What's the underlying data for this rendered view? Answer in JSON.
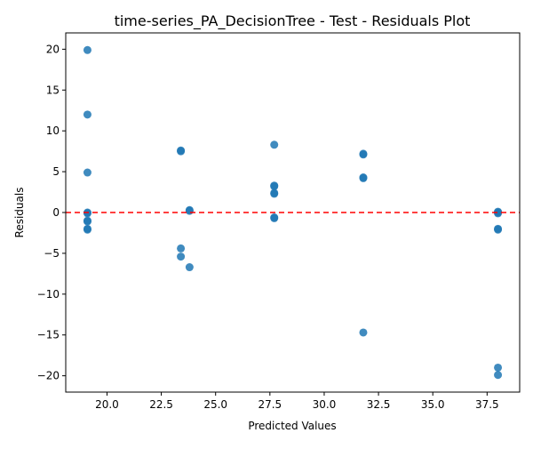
{
  "chart_data": {
    "type": "scatter",
    "title": "time-series_PA_DecisionTree - Test - Residuals Plot",
    "xlabel": "Predicted Values",
    "ylabel": "Residuals",
    "xlim": [
      18.1,
      39.0
    ],
    "ylim": [
      -22.0,
      22.0
    ],
    "xticks": [
      20.0,
      22.5,
      25.0,
      27.5,
      30.0,
      32.5,
      35.0,
      37.5
    ],
    "xtick_labels": [
      "20.0",
      "22.5",
      "25.0",
      "27.5",
      "30.0",
      "32.5",
      "35.0",
      "37.5"
    ],
    "yticks": [
      -20,
      -15,
      -10,
      -5,
      0,
      5,
      10,
      15,
      20
    ],
    "ytick_labels": [
      "−20",
      "−15",
      "−10",
      "−5",
      "0",
      "5",
      "10",
      "15",
      "20"
    ],
    "grid": false,
    "reference_line": {
      "y": 0,
      "color": "#ff0000",
      "style": "dashed"
    },
    "marker_color": "#1f77b4",
    "points": [
      {
        "x": 19.1,
        "y": 19.9
      },
      {
        "x": 19.1,
        "y": 12.0
      },
      {
        "x": 19.1,
        "y": 4.9
      },
      {
        "x": 19.1,
        "y": 0.0
      },
      {
        "x": 19.1,
        "y": -0.1
      },
      {
        "x": 19.1,
        "y": -1.0
      },
      {
        "x": 19.1,
        "y": -1.1
      },
      {
        "x": 19.1,
        "y": -2.0
      },
      {
        "x": 19.1,
        "y": -2.1
      },
      {
        "x": 23.4,
        "y": 7.6
      },
      {
        "x": 23.4,
        "y": 7.5
      },
      {
        "x": 23.4,
        "y": -4.4
      },
      {
        "x": 23.4,
        "y": -5.4
      },
      {
        "x": 23.8,
        "y": 0.3
      },
      {
        "x": 23.8,
        "y": 0.2
      },
      {
        "x": 23.8,
        "y": -6.7
      },
      {
        "x": 27.7,
        "y": 8.3
      },
      {
        "x": 27.7,
        "y": 3.3
      },
      {
        "x": 27.7,
        "y": 3.2
      },
      {
        "x": 27.7,
        "y": 2.4
      },
      {
        "x": 27.7,
        "y": 2.3
      },
      {
        "x": 27.7,
        "y": -0.6
      },
      {
        "x": 27.7,
        "y": -0.7
      },
      {
        "x": 31.8,
        "y": 7.2
      },
      {
        "x": 31.8,
        "y": 7.1
      },
      {
        "x": 31.8,
        "y": 4.3
      },
      {
        "x": 31.8,
        "y": 4.2
      },
      {
        "x": 31.8,
        "y": -14.7
      },
      {
        "x": 38.0,
        "y": 0.1
      },
      {
        "x": 38.0,
        "y": 0.0
      },
      {
        "x": 38.0,
        "y": -0.1
      },
      {
        "x": 38.0,
        "y": -2.0
      },
      {
        "x": 38.0,
        "y": -2.1
      },
      {
        "x": 38.0,
        "y": -19.0
      },
      {
        "x": 38.0,
        "y": -19.9
      }
    ]
  }
}
